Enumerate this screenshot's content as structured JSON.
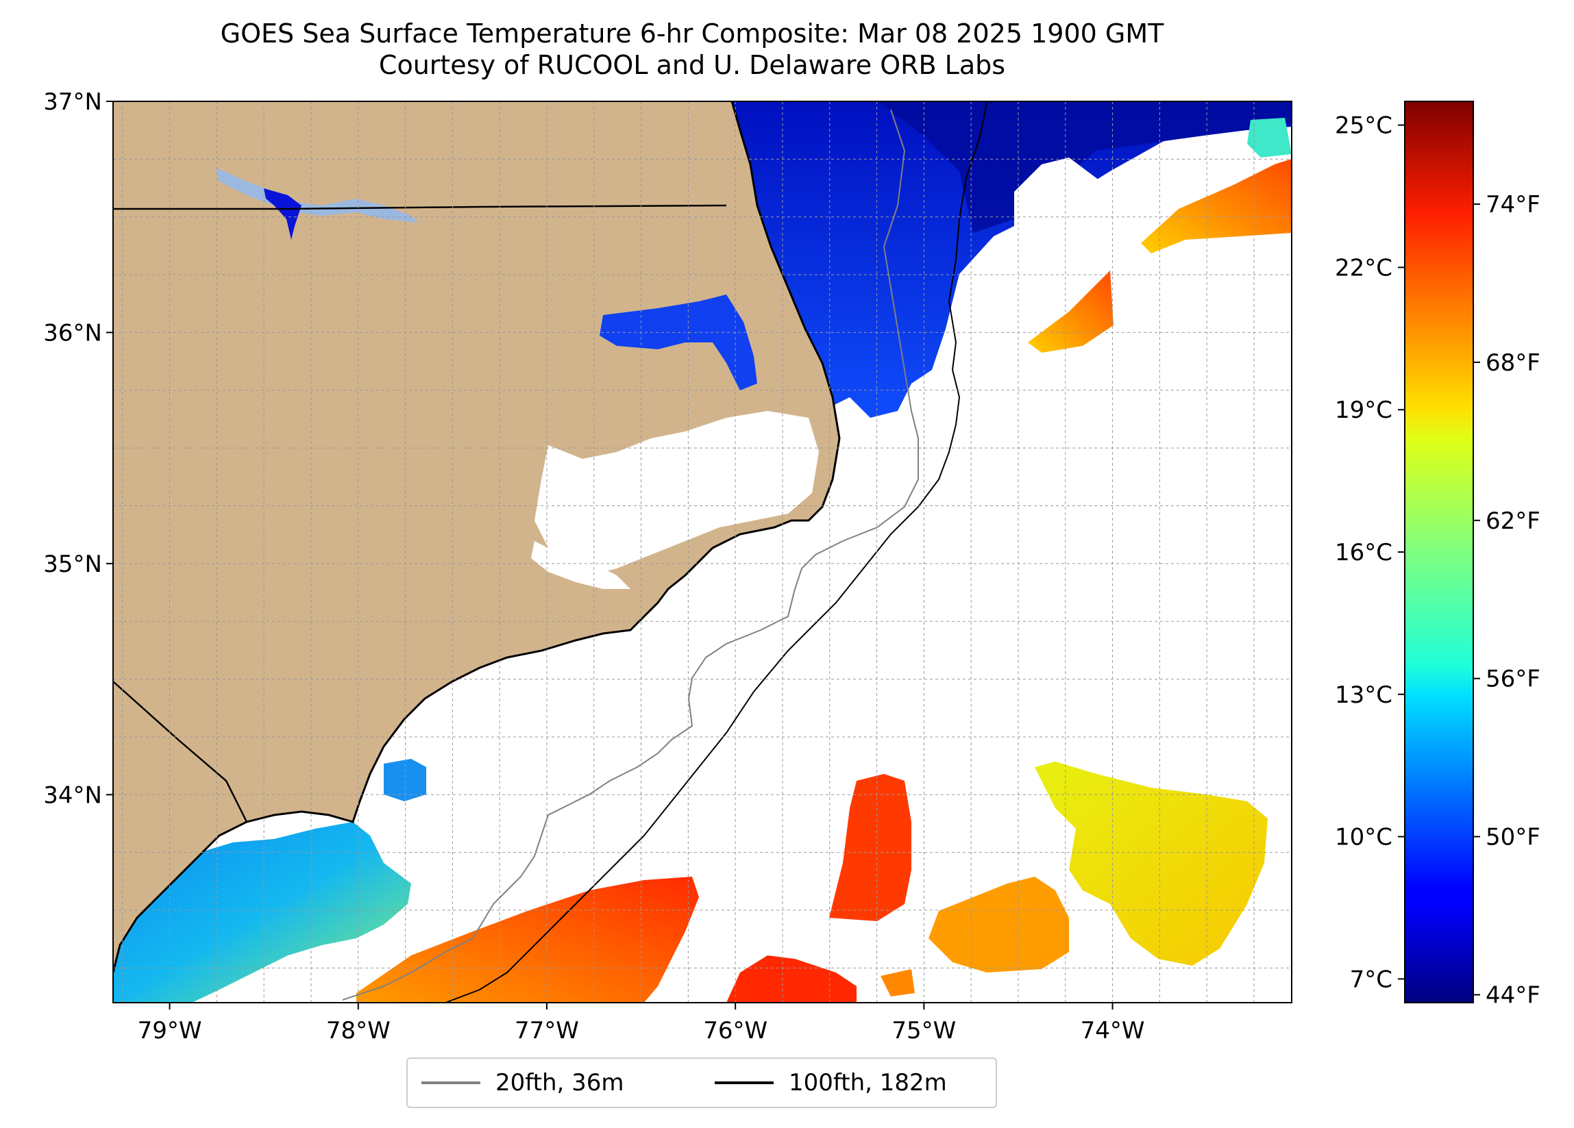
{
  "title": "GOES Sea Surface Temperature 6-hr Composite: Mar 08 2025 1900 GMT",
  "subtitle": "Courtesy of RUCOOL and U. Delaware ORB Labs",
  "map": {
    "lon_range": [
      -79.3,
      -73.05
    ],
    "lat_range": [
      33.1,
      37.0
    ],
    "lat_ticks": [
      {
        "value": 37,
        "label": "37°N"
      },
      {
        "value": 36,
        "label": "36°N"
      },
      {
        "value": 35,
        "label": "35°N"
      },
      {
        "value": 34,
        "label": "34°N"
      }
    ],
    "lon_ticks": [
      {
        "value": -79,
        "label": "79°W"
      },
      {
        "value": -78,
        "label": "78°W"
      },
      {
        "value": -77,
        "label": "77°W"
      },
      {
        "value": -76,
        "label": "76°W"
      },
      {
        "value": -75,
        "label": "75°W"
      },
      {
        "value": -74,
        "label": "74°W"
      }
    ],
    "gridlines": true,
    "land_color": "#d2b48c",
    "legend": [
      {
        "label": "20fth, 36m",
        "color": "#808080"
      },
      {
        "label": "100fth, 182m",
        "color": "#000000"
      }
    ]
  },
  "colorbar": {
    "colormap": "jet",
    "range_c": [
      6.5,
      25.5
    ],
    "celsius_ticks": [
      {
        "value": 25,
        "label": "25°C"
      },
      {
        "value": 22,
        "label": "22°C"
      },
      {
        "value": 19,
        "label": "19°C"
      },
      {
        "value": 16,
        "label": "16°C"
      },
      {
        "value": 13,
        "label": "13°C"
      },
      {
        "value": 10,
        "label": "10°C"
      },
      {
        "value": 7,
        "label": "7°C"
      }
    ],
    "fahrenheit_ticks": [
      {
        "value": 74,
        "label": "74°F"
      },
      {
        "value": 68,
        "label": "68°F"
      },
      {
        "value": 62,
        "label": "62°F"
      },
      {
        "value": 56,
        "label": "56°F"
      },
      {
        "value": 50,
        "label": "50°F"
      },
      {
        "value": 44,
        "label": "44°F"
      }
    ]
  }
}
